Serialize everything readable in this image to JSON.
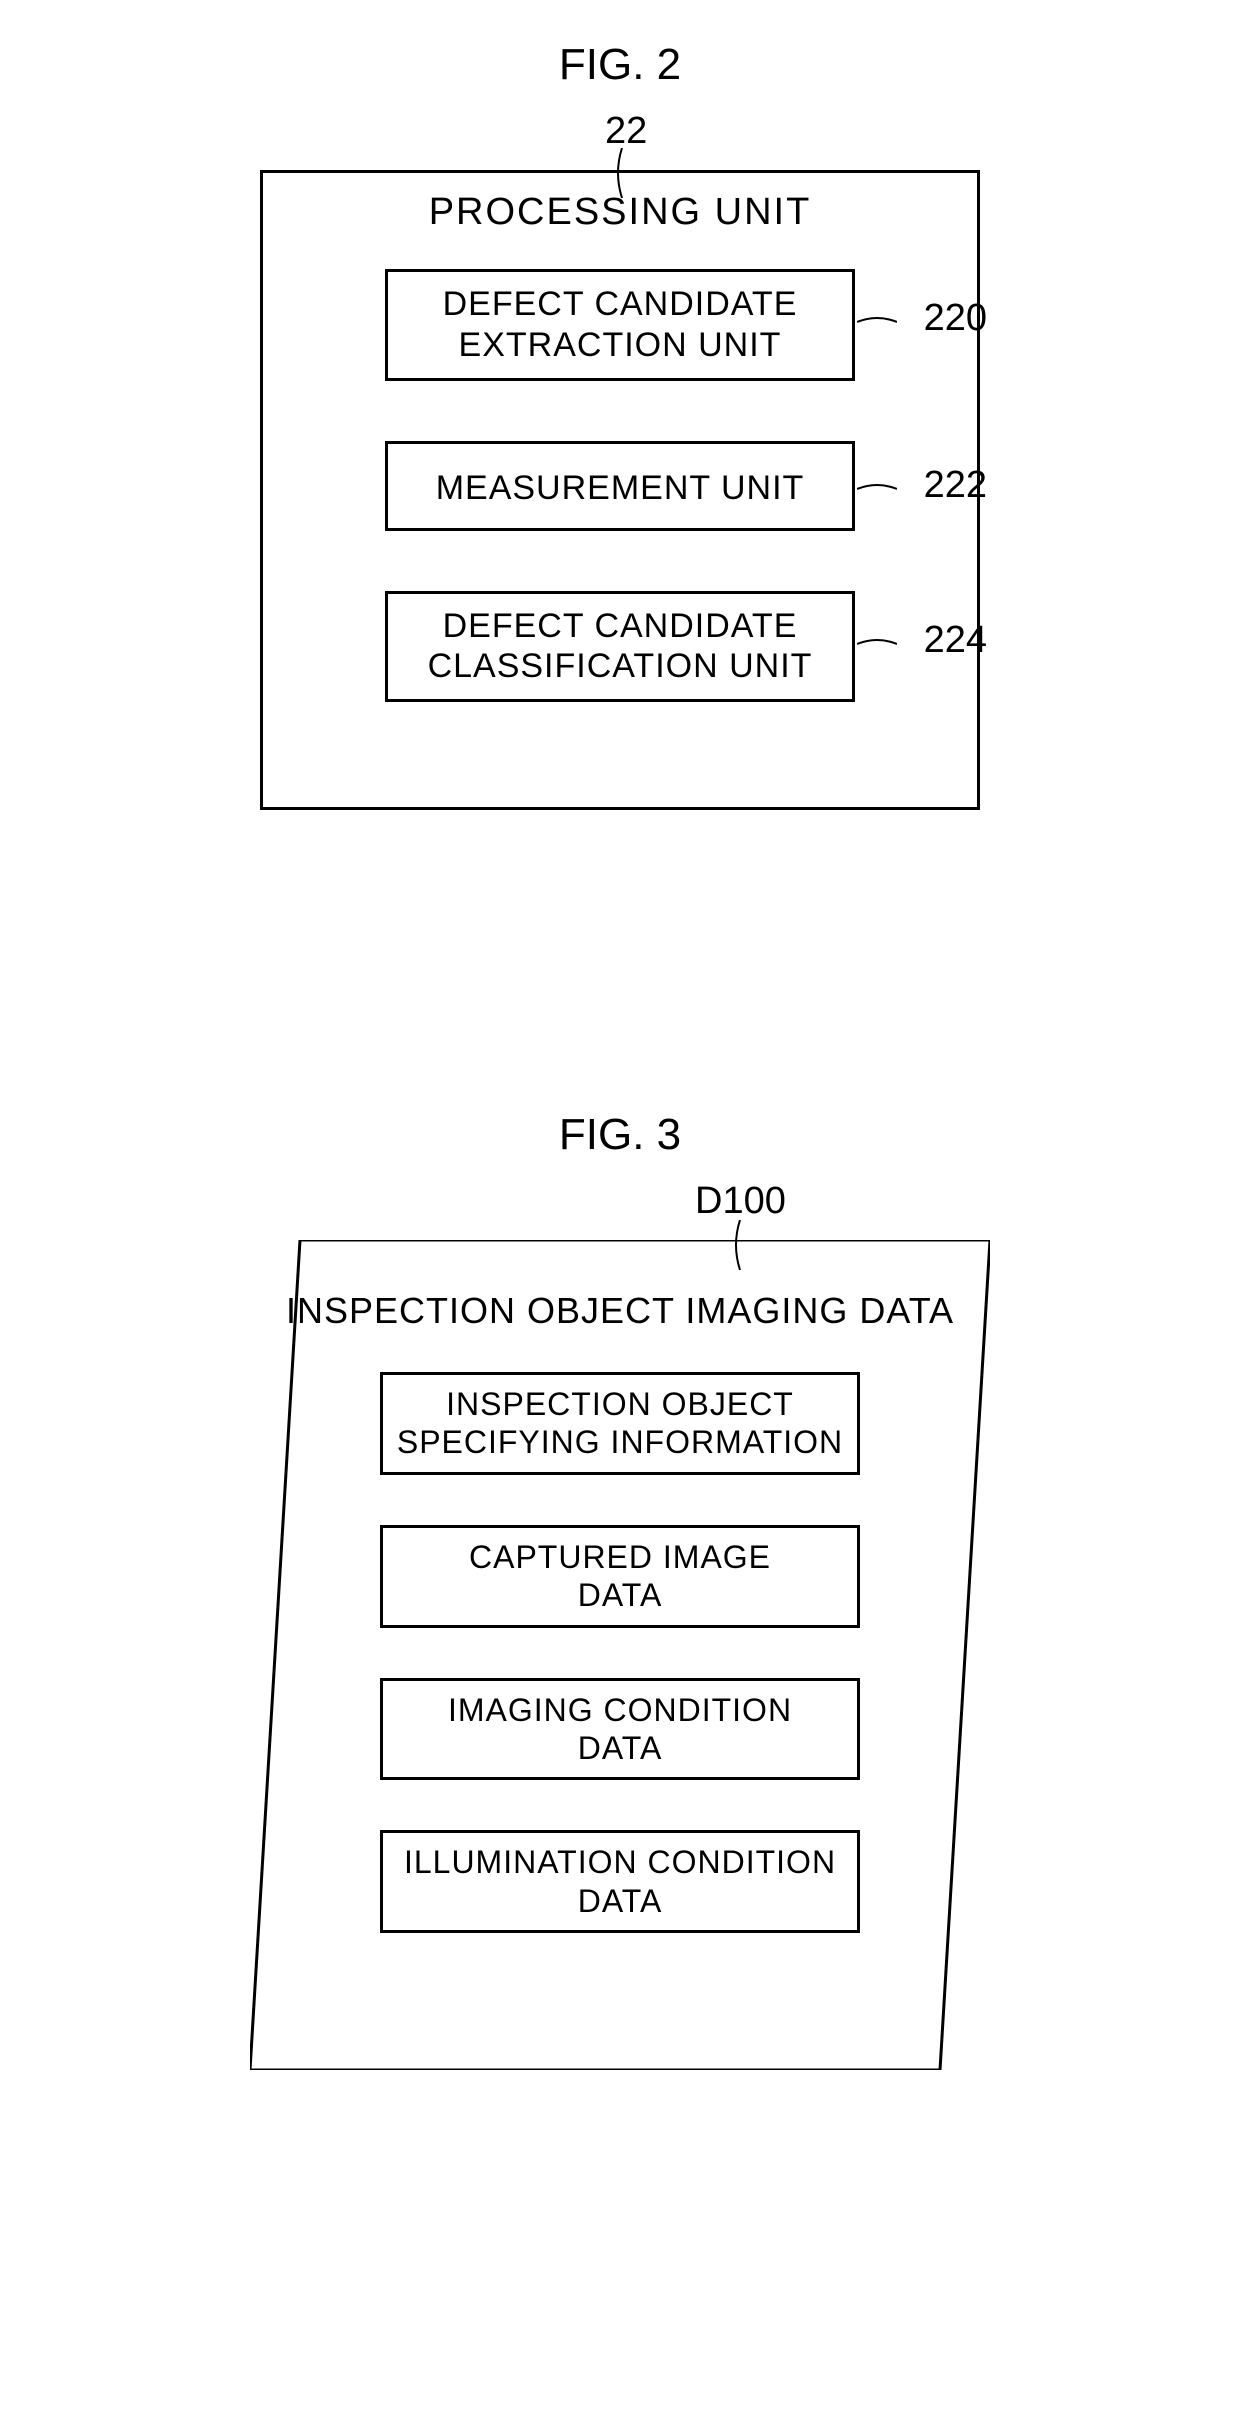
{
  "fig2": {
    "title": "FIG. 2",
    "ref_num": "22",
    "box_title": "PROCESSING UNIT",
    "boxes": [
      {
        "label": "DEFECT CANDIDATE\nEXTRACTION UNIT",
        "ref": "220"
      },
      {
        "label": "MEASUREMENT UNIT",
        "ref": "222"
      },
      {
        "label": "DEFECT CANDIDATE\nCLASSIFICATION UNIT",
        "ref": "224"
      }
    ],
    "styling": {
      "border_color": "#000000",
      "text_color": "#000000",
      "background_color": "#ffffff",
      "title_fontsize": 44,
      "box_title_fontsize": 38,
      "inner_text_fontsize": 34,
      "ref_fontsize": 38,
      "outer_box_width": 720,
      "outer_box_height": 640,
      "inner_box_width": 470,
      "border_width": 3
    }
  },
  "fig3": {
    "title": "FIG. 3",
    "ref_num": "D100",
    "box_title": "INSPECTION OBJECT IMAGING DATA",
    "boxes": [
      {
        "label": "INSPECTION OBJECT\nSPECIFYING INFORMATION"
      },
      {
        "label": "CAPTURED IMAGE\nDATA"
      },
      {
        "label": "IMAGING CONDITION\nDATA"
      },
      {
        "label": "ILLUMINATION CONDITION\nDATA"
      }
    ],
    "styling": {
      "border_color": "#000000",
      "text_color": "#000000",
      "background_color": "#ffffff",
      "title_fontsize": 44,
      "box_title_fontsize": 36,
      "inner_text_fontsize": 32,
      "ref_fontsize": 38,
      "parallelogram_width": 740,
      "parallelogram_height": 830,
      "parallelogram_skew": 50,
      "inner_box_width": 480,
      "border_width": 3
    }
  }
}
